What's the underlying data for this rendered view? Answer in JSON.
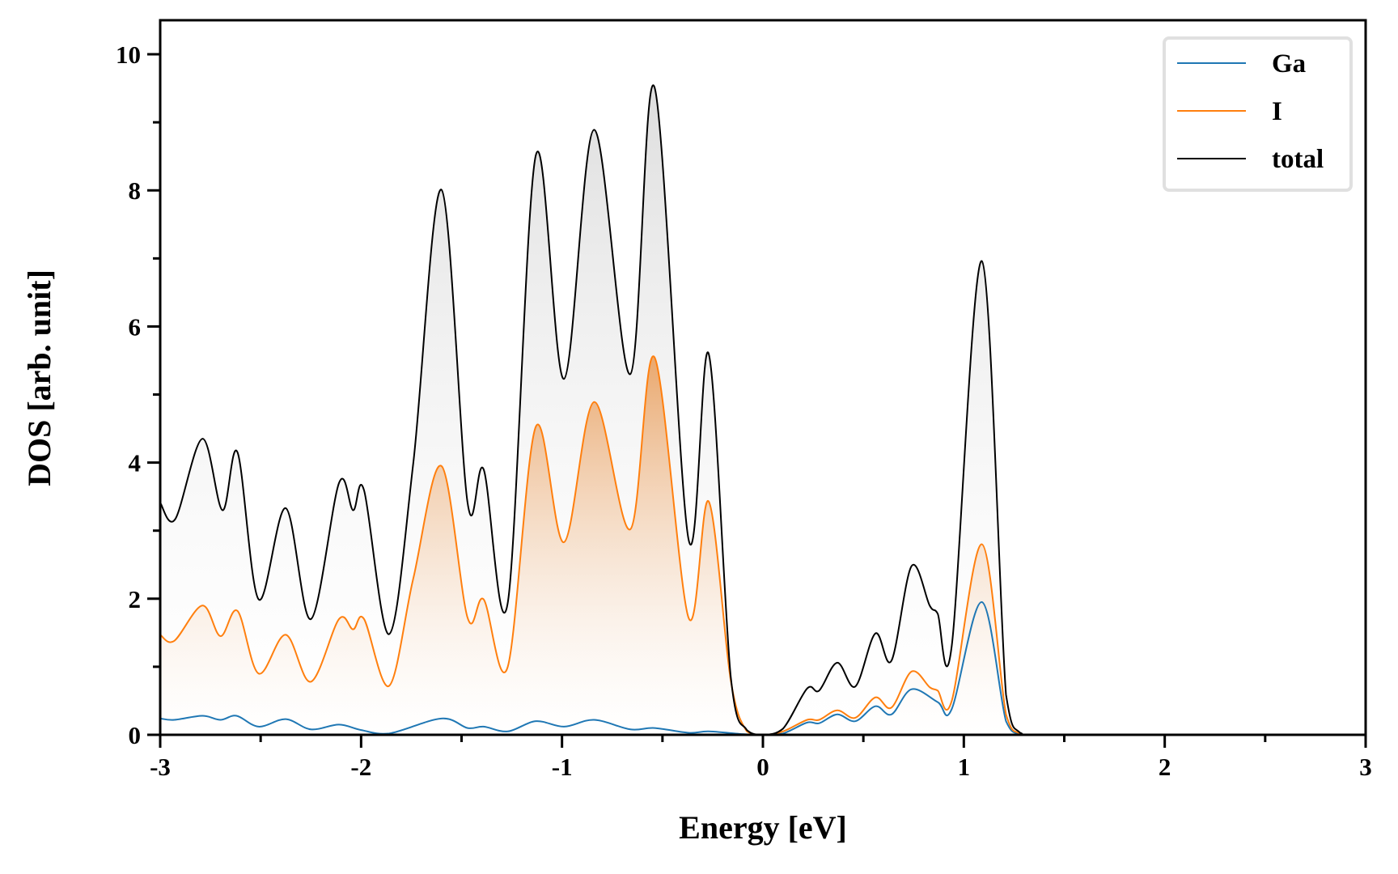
{
  "chart_data": {
    "type": "line",
    "title": "",
    "xlabel": "Energy [eV]",
    "ylabel": "DOS [arb. unit]",
    "xlim": [
      -3,
      3
    ],
    "ylim": [
      0,
      10.5
    ],
    "xticks": [
      -3,
      -2,
      -1,
      0,
      1,
      2,
      3
    ],
    "xtick_labels": [
      "-3",
      "-2",
      "-1",
      "0",
      "1",
      "2",
      "3"
    ],
    "yticks": [
      0,
      2,
      4,
      6,
      8,
      10
    ],
    "ytick_labels": [
      "0",
      "2",
      "4",
      "6",
      "8",
      "10"
    ],
    "grid": false,
    "legend_position": "top-right",
    "legend": [
      "Ga",
      "I",
      "total"
    ],
    "series": [
      {
        "name": "Ga",
        "color": "#1f77b4",
        "filled": false,
        "points": [
          [
            -3,
            0.24
          ],
          [
            -2.93,
            0.22
          ],
          [
            -2.79,
            0.28
          ],
          [
            -2.7,
            0.22
          ],
          [
            -2.62,
            0.28
          ],
          [
            -2.51,
            0.12
          ],
          [
            -2.375,
            0.23
          ],
          [
            -2.25,
            0.08
          ],
          [
            -2.11,
            0.15
          ],
          [
            -2.0,
            0.07
          ],
          [
            -1.86,
            0.02
          ],
          [
            -1.6,
            0.24
          ],
          [
            -1.47,
            0.1
          ],
          [
            -1.39,
            0.12
          ],
          [
            -1.27,
            0.05
          ],
          [
            -1.13,
            0.2
          ],
          [
            -0.99,
            0.12
          ],
          [
            -0.84,
            0.22
          ],
          [
            -0.66,
            0.08
          ],
          [
            -0.54,
            0.1
          ],
          [
            -0.37,
            0.03
          ],
          [
            -0.27,
            0.05
          ],
          [
            -0.1,
            0.01
          ],
          [
            0,
            0
          ],
          [
            0.1,
            0.02
          ],
          [
            0.22,
            0.18
          ],
          [
            0.28,
            0.17
          ],
          [
            0.37,
            0.3
          ],
          [
            0.46,
            0.2
          ],
          [
            0.56,
            0.42
          ],
          [
            0.64,
            0.3
          ],
          [
            0.74,
            0.67
          ],
          [
            0.87,
            0.48
          ],
          [
            0.94,
            0.38
          ],
          [
            1.09,
            1.95
          ],
          [
            1.21,
            0.2
          ],
          [
            1.28,
            0.01
          ],
          [
            1.4,
            0
          ],
          [
            2.2,
            0
          ],
          [
            3,
            0
          ]
        ]
      },
      {
        "name": "I",
        "color": "#ff7f0e",
        "filled": true,
        "points": [
          [
            -3,
            1.47
          ],
          [
            -2.93,
            1.38
          ],
          [
            -2.79,
            1.9
          ],
          [
            -2.7,
            1.45
          ],
          [
            -2.615,
            1.82
          ],
          [
            -2.51,
            0.9
          ],
          [
            -2.375,
            1.47
          ],
          [
            -2.25,
            0.78
          ],
          [
            -2.11,
            1.7
          ],
          [
            -2.04,
            1.55
          ],
          [
            -1.985,
            1.7
          ],
          [
            -1.86,
            0.72
          ],
          [
            -1.74,
            2.3
          ],
          [
            -1.6,
            3.95
          ],
          [
            -1.47,
            1.72
          ],
          [
            -1.39,
            1.99
          ],
          [
            -1.27,
            1.0
          ],
          [
            -1.13,
            4.53
          ],
          [
            -0.99,
            2.83
          ],
          [
            -0.84,
            4.89
          ],
          [
            -0.66,
            3.02
          ],
          [
            -0.54,
            5.55
          ],
          [
            -0.37,
            1.72
          ],
          [
            -0.27,
            3.43
          ],
          [
            -0.16,
            0.8
          ],
          [
            -0.08,
            0.05
          ],
          [
            0,
            0
          ],
          [
            0.1,
            0.05
          ],
          [
            0.22,
            0.22
          ],
          [
            0.28,
            0.22
          ],
          [
            0.37,
            0.36
          ],
          [
            0.46,
            0.25
          ],
          [
            0.56,
            0.55
          ],
          [
            0.64,
            0.4
          ],
          [
            0.74,
            0.93
          ],
          [
            0.83,
            0.7
          ],
          [
            0.87,
            0.65
          ],
          [
            0.94,
            0.5
          ],
          [
            1.09,
            2.8
          ],
          [
            1.21,
            0.3
          ],
          [
            1.28,
            0.02
          ],
          [
            1.4,
            0
          ],
          [
            2.2,
            0
          ],
          [
            3,
            0
          ]
        ]
      },
      {
        "name": "total",
        "color": "#000000",
        "filled": true,
        "points": [
          [
            -3,
            3.41
          ],
          [
            -2.925,
            3.17
          ],
          [
            -2.79,
            4.35
          ],
          [
            -2.69,
            3.3
          ],
          [
            -2.615,
            4.15
          ],
          [
            -2.51,
            1.99
          ],
          [
            -2.375,
            3.33
          ],
          [
            -2.25,
            1.7
          ],
          [
            -2.11,
            3.7
          ],
          [
            -2.04,
            3.3
          ],
          [
            -1.985,
            3.59
          ],
          [
            -1.86,
            1.48
          ],
          [
            -1.74,
            4.0
          ],
          [
            -1.6,
            8.01
          ],
          [
            -1.47,
            3.41
          ],
          [
            -1.39,
            3.9
          ],
          [
            -1.27,
            1.94
          ],
          [
            -1.13,
            8.52
          ],
          [
            -0.99,
            5.23
          ],
          [
            -0.84,
            8.89
          ],
          [
            -0.66,
            5.3
          ],
          [
            -0.54,
            9.52
          ],
          [
            -0.37,
            2.87
          ],
          [
            -0.27,
            5.6
          ],
          [
            -0.16,
            0.85
          ],
          [
            -0.08,
            0.07
          ],
          [
            0,
            0
          ],
          [
            0.1,
            0.09
          ],
          [
            0.22,
            0.68
          ],
          [
            0.28,
            0.65
          ],
          [
            0.37,
            1.06
          ],
          [
            0.46,
            0.71
          ],
          [
            0.56,
            1.49
          ],
          [
            0.64,
            1.09
          ],
          [
            0.74,
            2.48
          ],
          [
            0.83,
            1.9
          ],
          [
            0.87,
            1.78
          ],
          [
            0.94,
            1.31
          ],
          [
            1.09,
            6.96
          ],
          [
            1.21,
            0.59
          ],
          [
            1.28,
            0.03
          ],
          [
            1.4,
            0
          ],
          [
            2.2,
            0
          ],
          [
            3,
            0
          ]
        ]
      }
    ]
  }
}
